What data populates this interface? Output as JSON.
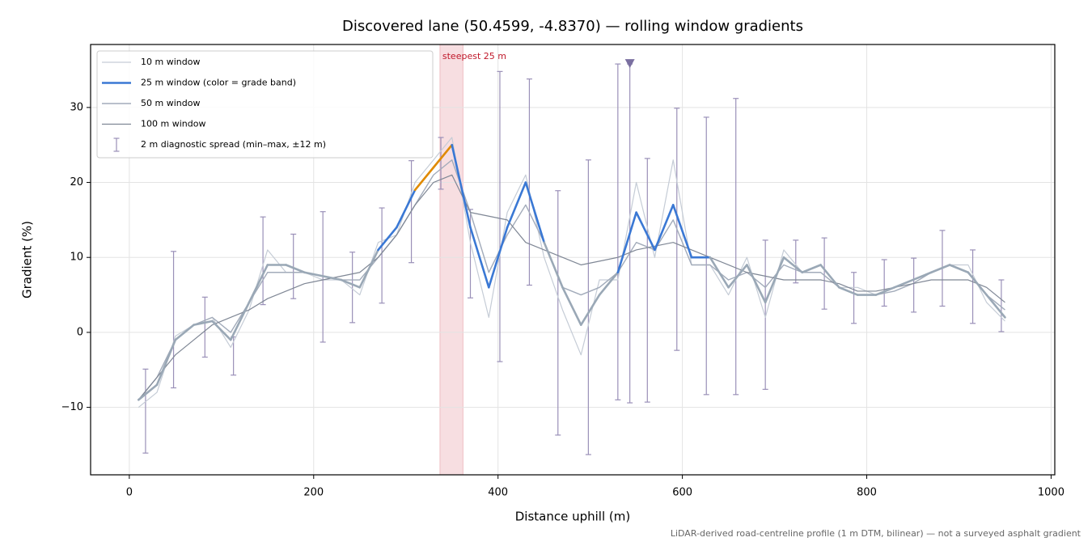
{
  "chart_data": {
    "type": "line",
    "title": "Discovered lane (50.4599, -4.8370) — rolling window gradients",
    "x_label": "Distance uphill (m)",
    "y_label": "Gradient (%)",
    "footnote": "LiDAR-derived road-centreline profile (1 m DTM, bilinear) — not a surveyed asphalt gradient",
    "xlim": [
      -42,
      1004
    ],
    "ylim": [
      -19,
      38.4
    ],
    "xticks": [
      0,
      200,
      400,
      600,
      800,
      1000
    ],
    "yticks": [
      {
        "value": -10,
        "label": "−10"
      },
      0,
      10,
      20,
      30
    ],
    "grid": true,
    "legend": "upper left",
    "x": [
      10,
      30,
      50,
      70,
      90,
      110,
      130,
      150,
      170,
      190,
      210,
      230,
      250,
      270,
      290,
      310,
      330,
      350,
      370,
      390,
      410,
      430,
      450,
      470,
      490,
      510,
      530,
      550,
      570,
      590,
      610,
      630,
      650,
      670,
      690,
      710,
      730,
      750,
      770,
      790,
      810,
      830,
      850,
      870,
      890,
      910,
      930,
      950
    ],
    "series": [
      {
        "name": "10 m window",
        "color": "#c5ccd6",
        "width": 1.2,
        "values": [
          -10,
          -8,
          -0.5,
          1,
          2,
          -2,
          3,
          11,
          8,
          8,
          7,
          7,
          5,
          12,
          13,
          20,
          23,
          26,
          12,
          2,
          16,
          21,
          10,
          3,
          -3,
          7,
          7,
          20,
          10,
          23,
          9,
          9,
          5,
          10,
          2,
          11,
          8,
          8,
          6,
          6,
          5,
          6,
          7,
          8,
          9,
          9,
          4,
          1.5
        ]
      },
      {
        "name": "25 m window (color = grade band)",
        "color": "#9aa8b6",
        "width": 2.6,
        "grade_bands": [
          [
            10,
            "#3a78d4"
          ],
          [
            20,
            "#e08a00"
          ],
          [
            25,
            "#c0182a"
          ]
        ],
        "values": [
          -9,
          -7,
          -1,
          1,
          1.5,
          -1,
          4,
          9,
          9,
          8,
          7.5,
          7,
          6,
          11,
          14,
          19,
          22,
          25,
          14,
          6,
          14,
          20,
          12,
          6,
          1,
          5,
          8,
          16,
          11,
          17,
          10,
          10,
          6,
          9,
          4,
          10,
          8,
          9,
          6,
          5,
          5,
          6,
          7,
          8,
          9,
          8,
          5,
          2
        ]
      },
      {
        "name": "50 m window",
        "color": "#a2abba",
        "width": 1.4,
        "values": [
          -9,
          -6,
          -1,
          1,
          2,
          0,
          4,
          8,
          8,
          8,
          7.5,
          7,
          7,
          10,
          13,
          17,
          21,
          23,
          16,
          8,
          13,
          17,
          12,
          6,
          5,
          6,
          8,
          12,
          11,
          15,
          9,
          9,
          7,
          8,
          6,
          9,
          8,
          8,
          6,
          5,
          5,
          5.5,
          6.5,
          8,
          9,
          8,
          5,
          3
        ]
      },
      {
        "name": "100 m window",
        "color": "#7f8795",
        "width": 1.2,
        "values": [
          -9,
          -6,
          -3,
          -1,
          1,
          2,
          3,
          4.5,
          5.5,
          6.5,
          7,
          7.5,
          8,
          10,
          13,
          17,
          20,
          21,
          16,
          15.5,
          15,
          12,
          11,
          10,
          9,
          9.5,
          10,
          11,
          11.5,
          12,
          11,
          10,
          9,
          8,
          7.5,
          7,
          7,
          7,
          6.5,
          5.5,
          5.5,
          6,
          6.5,
          7,
          7,
          7,
          6,
          4
        ]
      }
    ],
    "errorbars": {
      "name": "2 m diagnostic spread (min–max, ±12 m)",
      "color": "#9a90b8",
      "x": [
        17.6,
        48,
        82,
        113,
        145,
        178,
        210,
        242,
        274,
        306,
        338,
        370,
        402,
        434,
        465,
        498,
        530,
        543,
        562,
        594,
        626,
        658,
        690,
        723,
        754,
        786,
        819,
        851,
        882,
        915,
        946
      ],
      "low": [
        -16.1,
        -7.4,
        -3.3,
        -5.7,
        3.7,
        4.5,
        -1.3,
        1.3,
        3.9,
        9.3,
        19.1,
        4.6,
        -3.9,
        6.3,
        -13.7,
        -16.3,
        -9.0,
        -9.4,
        -9.3,
        -2.4,
        -8.3,
        -8.3,
        -7.6,
        6.6,
        3.1,
        1.2,
        3.5,
        2.7,
        3.5,
        1.2,
        0.1
      ],
      "high": [
        -4.9,
        10.8,
        4.7,
        -0.6,
        15.4,
        13.1,
        16.1,
        10.7,
        16.6,
        22.9,
        26.0,
        16.4,
        34.8,
        33.8,
        18.9,
        23.0,
        35.8,
        35.8,
        23.2,
        29.9,
        28.7,
        31.2,
        12.3,
        12.3,
        12.6,
        8.0,
        9.7,
        9.9,
        13.6,
        11.0,
        7.0
      ]
    },
    "highlight": {
      "label": "steepest 25 m",
      "x_range": [
        337,
        362
      ],
      "color": "#e8a0a8",
      "label_color": "#c0182a"
    },
    "marker": {
      "x": 543,
      "y": 35.8,
      "color": "#7a6fa0"
    }
  }
}
